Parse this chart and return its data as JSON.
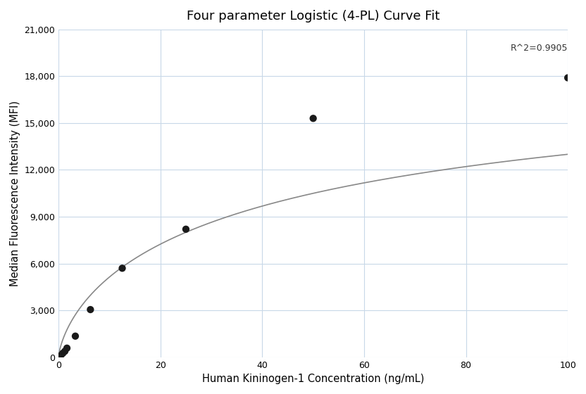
{
  "title": "Four parameter Logistic (4-PL) Curve Fit",
  "xlabel": "Human Kininogen-1 Concentration (ng/mL)",
  "ylabel": "Median Fluorescence Intensity (MFI)",
  "scatter_x": [
    0.41,
    0.82,
    1.23,
    1.64,
    3.29,
    6.25,
    12.5,
    25.0,
    50.0,
    100.0
  ],
  "scatter_y": [
    100,
    250,
    380,
    580,
    1350,
    3050,
    5700,
    8200,
    15300,
    17900
  ],
  "xlim": [
    0,
    100
  ],
  "ylim": [
    0,
    21000
  ],
  "yticks": [
    0,
    3000,
    6000,
    9000,
    12000,
    15000,
    18000,
    21000
  ],
  "xticks": [
    0,
    20,
    40,
    60,
    80,
    100
  ],
  "r_squared": "R^2=0.9905",
  "r_squared_x": 100,
  "r_squared_y": 19500,
  "curve_color": "#888888",
  "scatter_color": "#1a1a1a",
  "background_color": "#ffffff",
  "grid_color": "#c8d8e8",
  "title_fontsize": 13,
  "label_fontsize": 10.5,
  "tick_labelsize": 9
}
